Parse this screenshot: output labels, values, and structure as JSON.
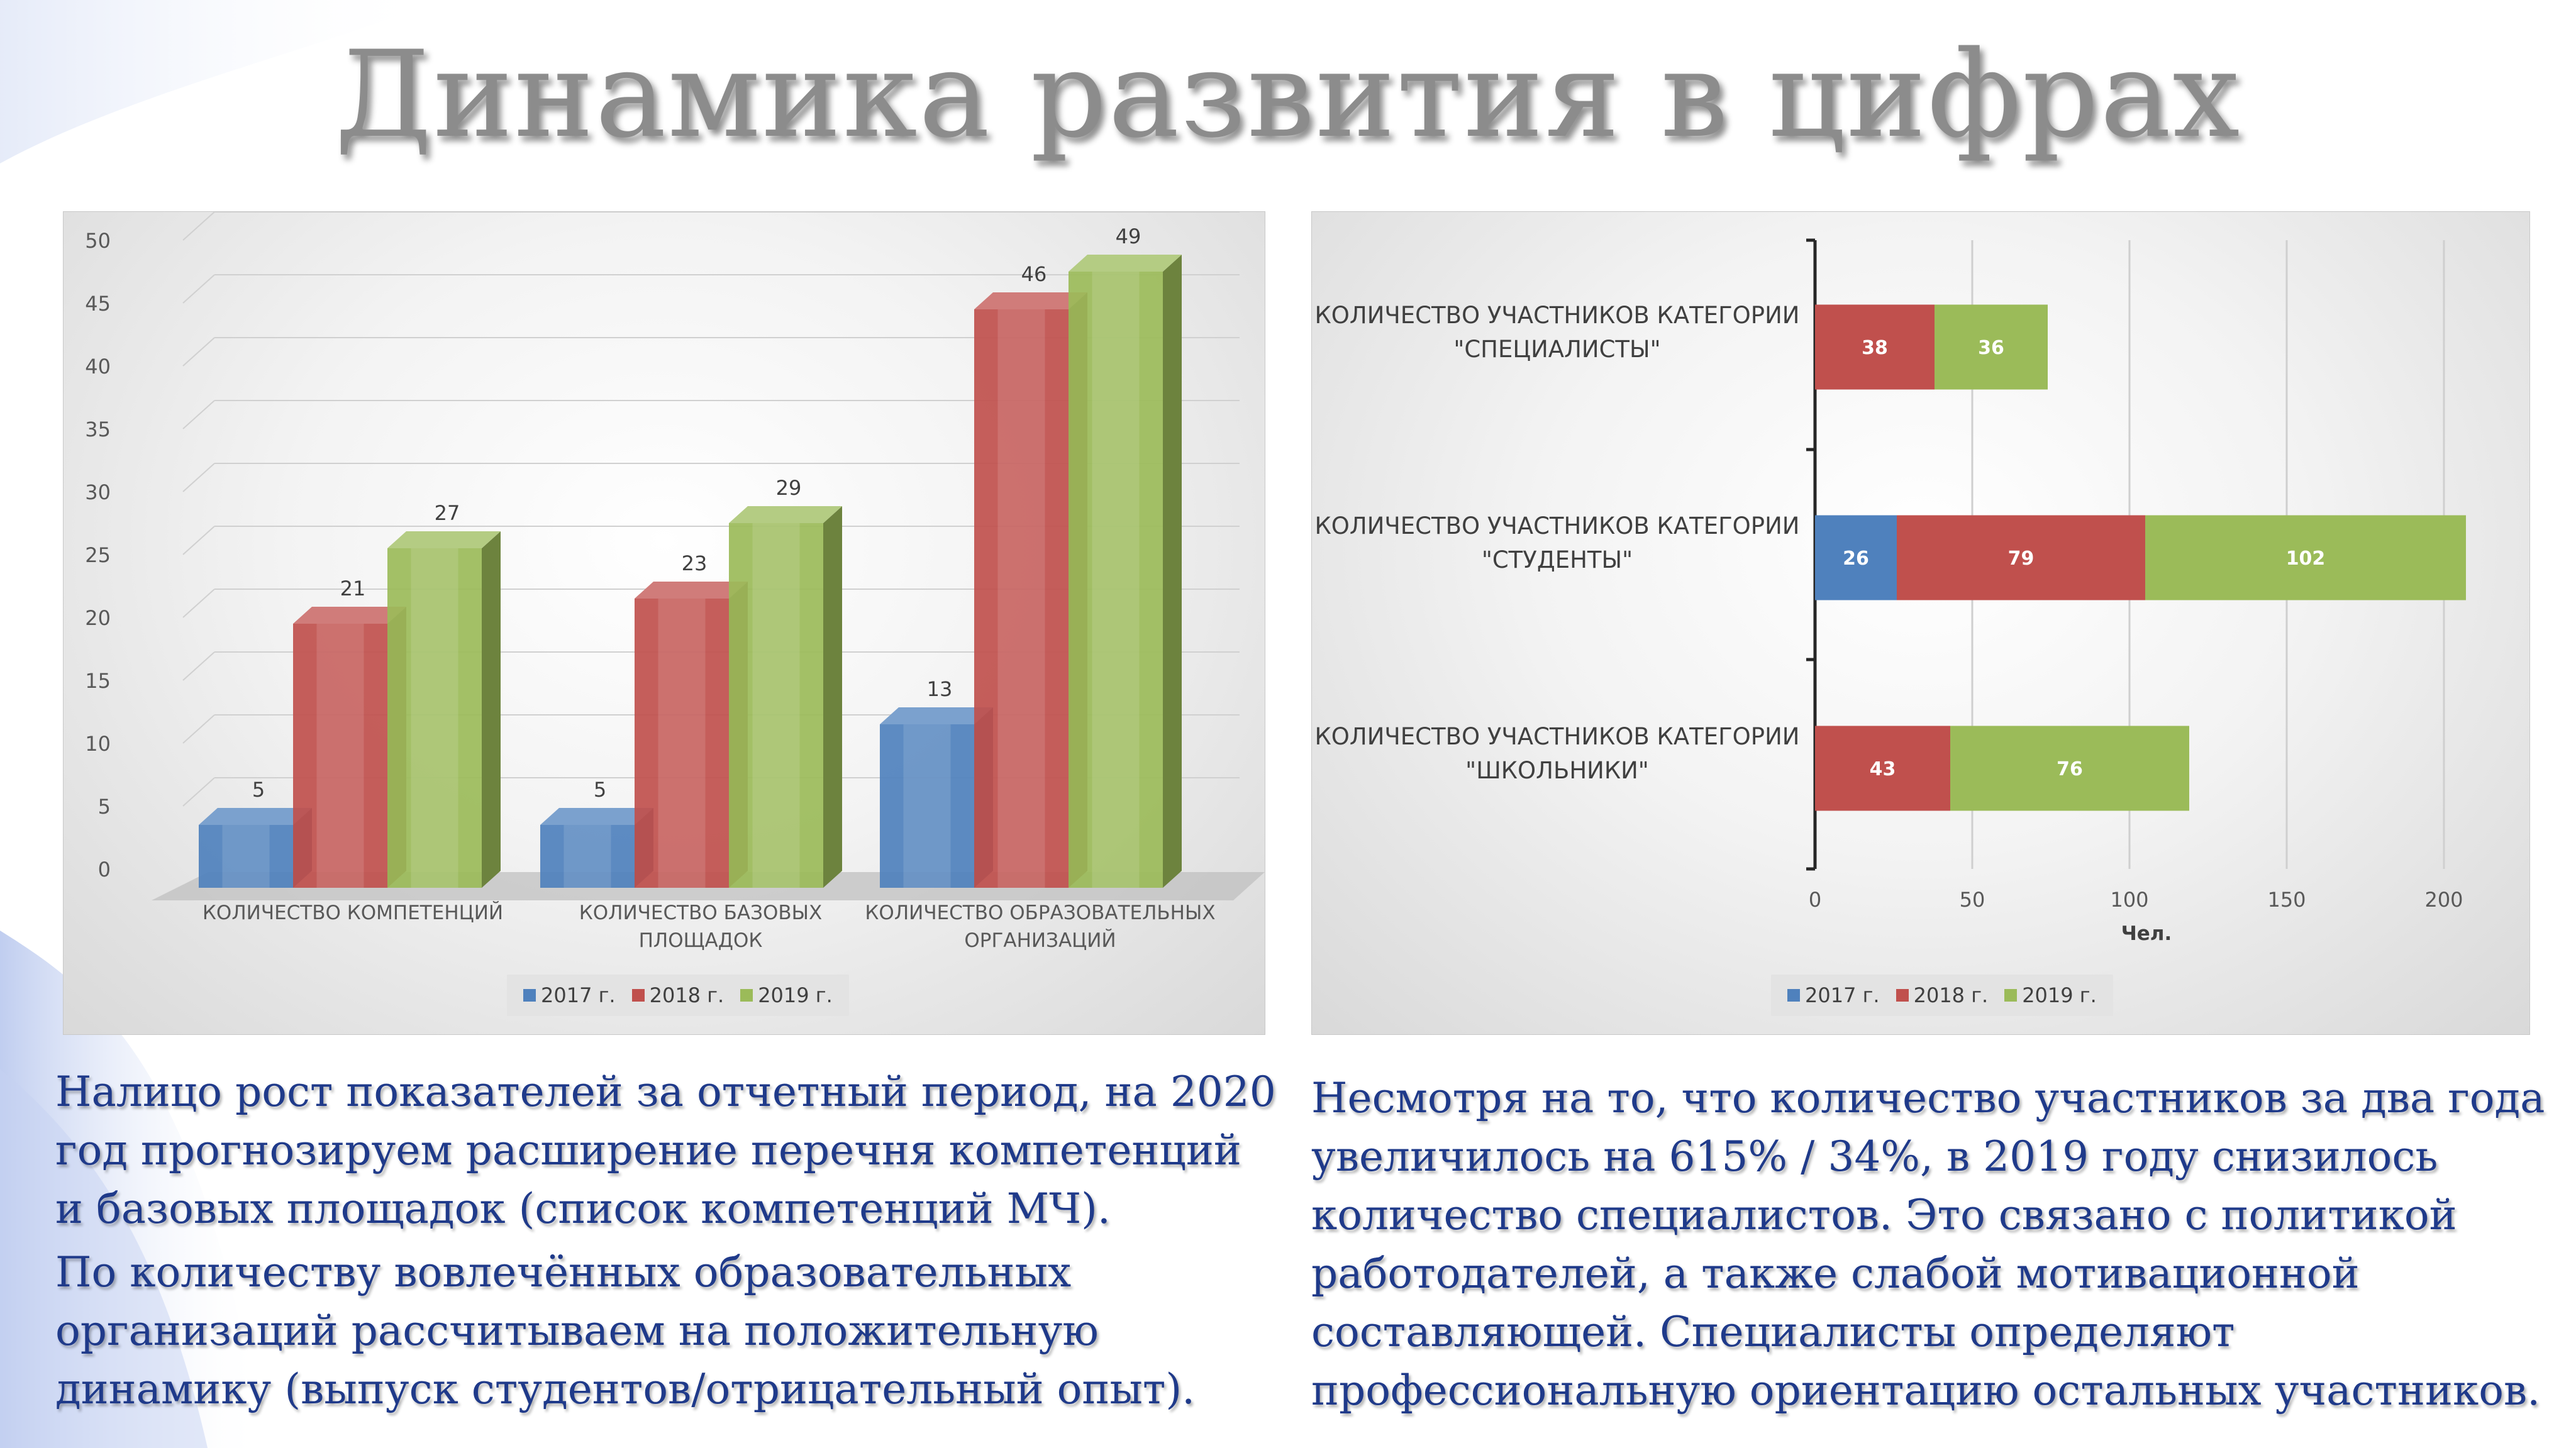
{
  "title": "Динамика развития в цифрах",
  "colors": {
    "y2017": "#4f81bd",
    "y2018": "#c0504d",
    "y2019": "#9bbb59"
  },
  "chart_data": [
    {
      "type": "bar",
      "title": "",
      "categories": [
        [
          "КОЛИЧЕСТВО КОМПЕТЕНЦИЙ"
        ],
        [
          "КОЛИЧЕСТВО БАЗОВЫХ",
          "ПЛОЩАДОК"
        ],
        [
          "КОЛИЧЕСТВО ОБРАЗОВАТЕЛЬНЫХ",
          "ОРГАНИЗАЦИЙ"
        ]
      ],
      "series": [
        {
          "name": "2017 г.",
          "values": [
            5,
            5,
            13
          ]
        },
        {
          "name": "2018 г.",
          "values": [
            21,
            23,
            46
          ]
        },
        {
          "name": "2019 г.",
          "values": [
            27,
            29,
            49
          ]
        }
      ],
      "yticks": [
        "0",
        "5",
        "10",
        "15",
        "20",
        "25",
        "30",
        "35",
        "40",
        "45",
        "50"
      ],
      "ylim": [
        0,
        50
      ],
      "grid": true,
      "legend": "bottom"
    },
    {
      "type": "bar",
      "orientation": "horizontal",
      "stacked": true,
      "title": "",
      "categories": [
        [
          "КОЛИЧЕСТВО УЧАСТНИКОВ КАТЕГОРИИ",
          "\"СПЕЦИАЛИСТЫ\""
        ],
        [
          "КОЛИЧЕСТВО УЧАСТНИКОВ КАТЕГОРИИ",
          "\"СТУДЕНТЫ\""
        ],
        [
          "КОЛИЧЕСТВО УЧАСТНИКОВ КАТЕГОРИИ",
          "\"ШКОЛЬНИКИ\""
        ]
      ],
      "series": [
        {
          "name": "2017 г.",
          "values": [
            null,
            26,
            null
          ]
        },
        {
          "name": "2018 г.",
          "values": [
            38,
            79,
            43
          ]
        },
        {
          "name": "2019 г.",
          "values": [
            36,
            102,
            76
          ]
        }
      ],
      "xticks": [
        "0",
        "50",
        "100",
        "150",
        "200"
      ],
      "xlim": [
        0,
        200
      ],
      "xlabel": "Чел.",
      "grid": true,
      "legend": "bottom"
    }
  ],
  "text_left": [
    [
      "Налицо рост показателей за отчетный период, на 2020",
      "год прогнозируем расширение перечня компетенций",
      "и базовых площадок (список компетенций МЧ)."
    ],
    [
      "По количеству вовлечённых образовательных",
      "организаций рассчитываем на положительную",
      "динамику (выпуск студентов/отрицательный опыт)."
    ]
  ],
  "text_right": [
    "Несмотря на то, что количество участников за два года",
    "увеличилось на 615% / 34%, в 2019 году снизилось",
    "количество специалистов. Это связано с политикой",
    "работодателей, а также слабой мотивационной",
    "составляющей. Специалисты определяют",
    "профессиональную ориентацию остальных участников."
  ]
}
